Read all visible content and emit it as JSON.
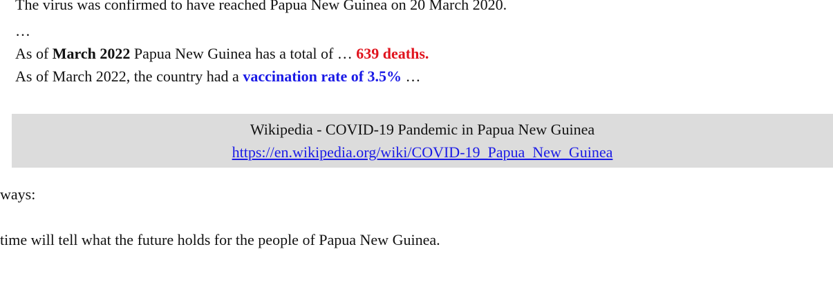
{
  "quote": {
    "lines": [
      {
        "segments": [
          {
            "text": "The virus was confirmed to have reached Papua New Guinea on 20 March 2020.",
            "style": "plain"
          }
        ]
      },
      {
        "segments": [
          {
            "text": "…",
            "style": "plain"
          }
        ]
      },
      {
        "segments": [
          {
            "text": "As of ",
            "style": "plain"
          },
          {
            "text": "March 2022",
            "style": "bold"
          },
          {
            "text": " Papua New Guinea has a total of … ",
            "style": "plain"
          },
          {
            "text": "639 deaths.",
            "style": "bold-red"
          }
        ]
      },
      {
        "segments": [
          {
            "text": "As of March 2022, the country had a ",
            "style": "plain"
          },
          {
            "text": "vaccination rate of 3.5%",
            "style": "bold-blue"
          },
          {
            "text": " …",
            "style": "plain"
          }
        ]
      }
    ]
  },
  "source": {
    "title": "Wikipedia - COVID-19 Pandemic in Papua New Guinea",
    "url": "https://en.wikipedia.org/wiki/COVID-19_Papua_New_Guinea"
  },
  "paragraphs": [
    "ways:",
    "time will tell what the future holds for the people of Papua New Guinea."
  ]
}
